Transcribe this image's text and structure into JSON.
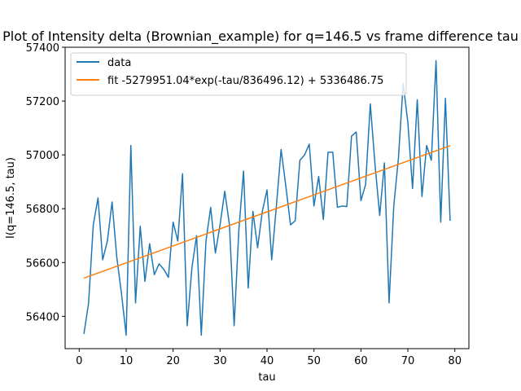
{
  "chart_data": {
    "type": "line",
    "title": "Plot of Intensity delta (Brownian_example) for q=146.5 vs frame difference tau",
    "xlabel": "tau",
    "ylabel": "I(q=146.5, tau)",
    "xlim": [
      -3,
      83
    ],
    "ylim": [
      56280,
      57400
    ],
    "xticks": [
      0,
      10,
      20,
      30,
      40,
      50,
      60,
      70,
      80
    ],
    "yticks": [
      56400,
      56600,
      56800,
      57000,
      57200,
      57400
    ],
    "grid": false,
    "legend_position": "top-left",
    "series": [
      {
        "name": "data",
        "color": "#1f77b4",
        "x": [
          1,
          2,
          3,
          4,
          5,
          6,
          7,
          8,
          9,
          10,
          11,
          12,
          13,
          14,
          15,
          16,
          17,
          18,
          19,
          20,
          21,
          22,
          23,
          24,
          25,
          26,
          27,
          28,
          29,
          30,
          31,
          32,
          33,
          34,
          35,
          36,
          37,
          38,
          39,
          40,
          41,
          42,
          43,
          44,
          45,
          46,
          47,
          48,
          49,
          50,
          51,
          52,
          53,
          54,
          55,
          56,
          57,
          58,
          59,
          60,
          61,
          62,
          63,
          64,
          65,
          66,
          67,
          68,
          69,
          70,
          71,
          72,
          73,
          74,
          75,
          76,
          77,
          78,
          79
        ],
        "y": [
          56335,
          56450,
          56740,
          56840,
          56610,
          56680,
          56825,
          56620,
          56485,
          56330,
          57035,
          56450,
          56735,
          56530,
          56670,
          56555,
          56595,
          56575,
          56545,
          56750,
          56680,
          56930,
          56365,
          56580,
          56700,
          56330,
          56680,
          56805,
          56635,
          56740,
          56865,
          56740,
          56365,
          56720,
          56940,
          56505,
          56790,
          56655,
          56790,
          56870,
          56610,
          56810,
          57020,
          56885,
          56740,
          56755,
          56980,
          57000,
          57040,
          56810,
          56920,
          56760,
          57010,
          57010,
          56805,
          56810,
          56808,
          57070,
          57085,
          56830,
          56890,
          57190,
          56965,
          56775,
          56970,
          56450,
          56810,
          56990,
          57265,
          57120,
          56875,
          57205,
          56845,
          57035,
          56980,
          57350,
          56750,
          57210,
          56755
        ]
      },
      {
        "name": "fit -5279951.04*exp(-tau/836496.12) + 5336486.75",
        "color": "#ff7f0e",
        "fit": {
          "a": -5279951.04,
          "tau0": 836496.12,
          "c": 5336486.75,
          "x_start": 1,
          "x_end": 79
        }
      }
    ]
  }
}
